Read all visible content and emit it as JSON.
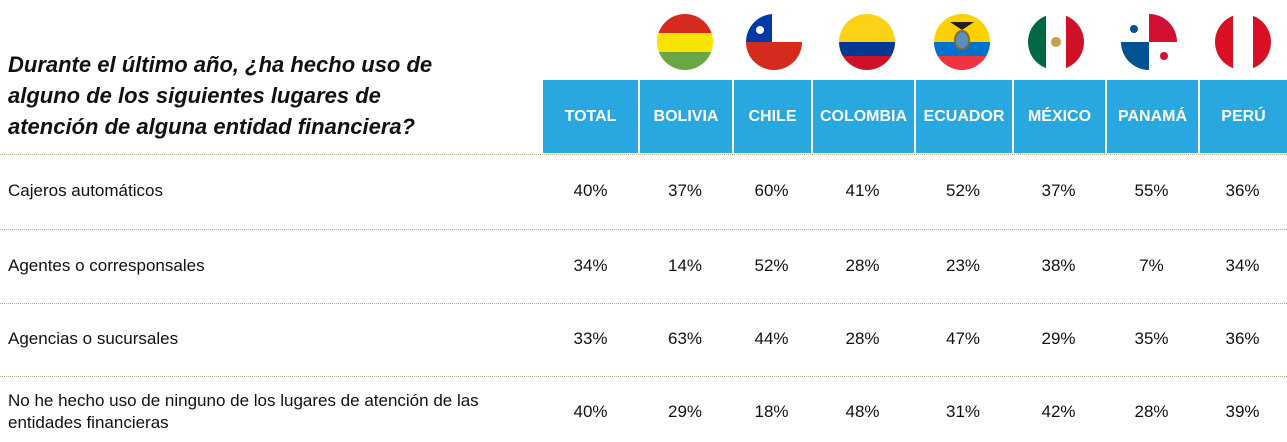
{
  "title": [
    "Durante el último año, ¿ha hecho uso de",
    "alguno de los siguientes lugares de",
    "atención de alguna entidad financiera?"
  ],
  "table": {
    "columns": [
      "TOTAL",
      "BOLIVIA",
      "CHILE",
      "COLOMBIA",
      "ECUADOR",
      "MÉXICO",
      "PANAMÁ",
      "PERÚ"
    ],
    "rows": [
      {
        "label": "Cajeros automáticos",
        "values": [
          "40%",
          "37%",
          "60%",
          "41%",
          "52%",
          "37%",
          "55%",
          "36%"
        ]
      },
      {
        "label": "Agentes o corresponsales",
        "values": [
          "34%",
          "14%",
          "52%",
          "28%",
          "23%",
          "38%",
          "7%",
          "34%"
        ]
      },
      {
        "label": "Agencias o sucursales",
        "values": [
          "33%",
          "63%",
          "44%",
          "28%",
          "47%",
          "29%",
          "35%",
          "36%"
        ]
      },
      {
        "label": "No he hecho uso de ninguno de los lugares de atención de las entidades financieras",
        "values": [
          "40%",
          "29%",
          "18%",
          "48%",
          "31%",
          "42%",
          "28%",
          "39%"
        ]
      }
    ]
  }
}
